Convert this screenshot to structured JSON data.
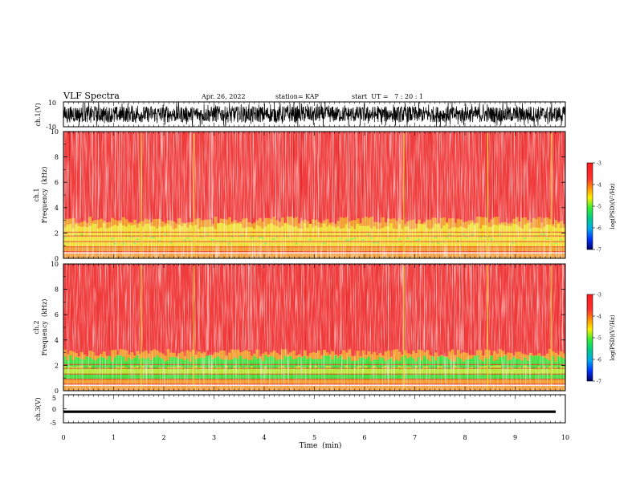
{
  "header": {
    "title": "VLF Spectra",
    "date": "Apr. 26, 2022",
    "station": "station= KAP",
    "start": "start  UT =   7 : 20 : 1"
  },
  "chart_data": [
    {
      "type": "line",
      "id": "ch1",
      "ylabel": "ch.1(V)",
      "ylim": [
        -10,
        10
      ],
      "yticks": [
        "10",
        "-10"
      ],
      "xlim": [
        0,
        10
      ],
      "note": "dense noisy waveform spanning the full range"
    },
    {
      "type": "heatmap",
      "id": "spec1",
      "ylabel": [
        "ch.1",
        "Frequency  (kHz)"
      ],
      "ylim": [
        0,
        10
      ],
      "yticks": [
        "0",
        "2",
        "4",
        "6",
        "8",
        "10"
      ],
      "xlim": [
        0,
        10
      ],
      "colorbar": {
        "label": "log(PSD)(V²/Hz)",
        "range": [
          -7,
          -3
        ],
        "ticks": [
          "-3",
          "-4",
          "-5",
          "-6",
          "-7"
        ]
      }
    },
    {
      "type": "heatmap",
      "id": "spec2",
      "ylabel": [
        "ch.2",
        "Frequency  (kHz)"
      ],
      "ylim": [
        0,
        10
      ],
      "yticks": [
        "0",
        "2",
        "4",
        "6",
        "8",
        "10"
      ],
      "xlim": [
        0,
        10
      ],
      "colorbar": {
        "label": "log(PSD)(V²/Hz)",
        "range": [
          -7,
          -3
        ],
        "ticks": [
          "-3",
          "-4",
          "-5",
          "-6",
          "-7"
        ]
      }
    },
    {
      "type": "line",
      "id": "ch3",
      "ylabel": "ch.3(V)",
      "ylim": [
        -5,
        5
      ],
      "yticks": [
        "5",
        "0",
        "-5"
      ],
      "xlim": [
        0,
        10
      ],
      "note": "nearly flat trace around -1 V"
    }
  ],
  "xaxis": {
    "label": "Time  (min)",
    "ticks": [
      "0",
      "1",
      "2",
      "3",
      "4",
      "5",
      "6",
      "7",
      "8",
      "9",
      "10"
    ]
  },
  "colors": {
    "spec_background": "#f03c3c",
    "band_yellow": "#f0e030",
    "band_green": "#40e040",
    "trace": "#000000"
  }
}
